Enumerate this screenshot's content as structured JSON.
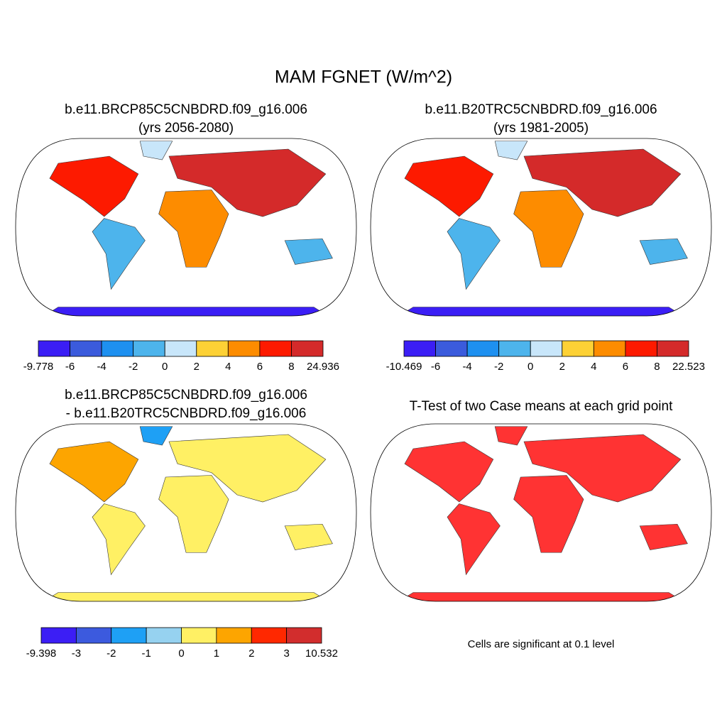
{
  "title": "MAM FGNET (W/m^2)",
  "panels": [
    {
      "title": [
        "b.e11.BRCP85C5CNBDRD.f09_g16.006",
        "(yrs 2056-2080)"
      ],
      "colorbar": {
        "colors": [
          "#3b1ef5",
          "#3b5bdc",
          "#1e90f0",
          "#4db4ec",
          "#c8e6fa",
          "#fdd135",
          "#fd8c00",
          "#fd1a00",
          "#d42a2a"
        ],
        "ticks": [
          -9.778,
          -6,
          -4,
          -2,
          0,
          2,
          4,
          6,
          8,
          24.936
        ]
      }
    },
    {
      "title": [
        "b.e11.B20TRC5CNBDRD.f09_g16.006",
        "(yrs 1981-2005)"
      ],
      "colorbar": {
        "colors": [
          "#3b1ef5",
          "#3b5bdc",
          "#1e90f0",
          "#4db4ec",
          "#c8e6fa",
          "#fdd135",
          "#fd8c00",
          "#fd1a00",
          "#d42a2a"
        ],
        "ticks": [
          -10.469,
          -6,
          -4,
          -2,
          0,
          2,
          4,
          6,
          8,
          22.523
        ]
      }
    },
    {
      "title": [
        "b.e11.BRCP85C5CNBDRD.f09_g16.006",
        "- b.e11.B20TRC5CNBDRD.f09_g16.006"
      ],
      "colorbar": {
        "colors": [
          "#3c1ef5",
          "#3c5ade",
          "#1ea0f5",
          "#96d2f0",
          "#fff064",
          "#fda500",
          "#ff2800",
          "#d22d2d"
        ],
        "ticks": [
          -9.398,
          -3,
          -2,
          -1,
          0,
          1,
          2,
          3,
          10.532
        ]
      }
    },
    {
      "title": [
        "T-Test of two Case means at each grid point"
      ],
      "note": "Cells are significant at 0.1 level",
      "color": "#ff0000"
    }
  ]
}
